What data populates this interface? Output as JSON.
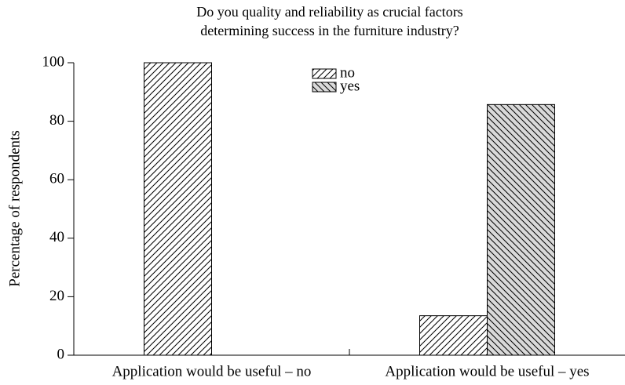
{
  "chart_data": {
    "type": "bar",
    "title": [
      "Do you quality and reliability as crucial factors",
      "determining success in the furniture industry?"
    ],
    "ylabel": "Percentage of respondents",
    "categories": [
      "Application would be useful – no",
      "Application would be useful – yes"
    ],
    "series": [
      {
        "name": "no",
        "color": "#ffffff",
        "hatch": "/",
        "values": [
          100,
          13.5
        ]
      },
      {
        "name": "yes",
        "color": "#d9d9d9",
        "hatch": "\\",
        "values": [
          0,
          85.7
        ]
      }
    ],
    "ylim": [
      0,
      100
    ],
    "yticks": [
      0,
      20,
      40,
      60,
      80,
      100
    ],
    "legend": "top"
  }
}
